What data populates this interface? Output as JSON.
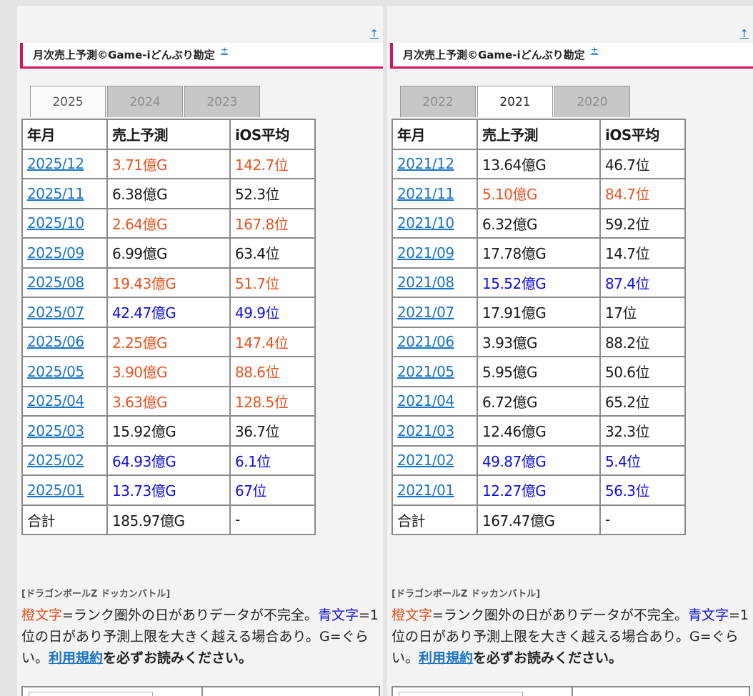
{
  "colors": {
    "orange": "#e8521f",
    "blue": "#1010e0",
    "link": "#1a73c7",
    "accent": "#d0145d"
  },
  "up_arrow": "↑",
  "heading_title": "月次売上予測©Game-iどんぶり勘定",
  "heading_link": "±",
  "headers": [
    "年月",
    "売上予測",
    "iOS平均"
  ],
  "source": "[ドラゴンボールZ ドッカンバトル]",
  "legend": {
    "orange_label": "橙文字",
    "text1": "=ランク圏外の日がありデータが不完全。",
    "blue_label": "青文字",
    "text2": "=1位の日があり予測上限を大きく越える場合あり。G=ぐらい。",
    "terms_link": "利用規約",
    "text3": "を必ずお読みください。"
  },
  "left": {
    "tabs": [
      {
        "label": "2025",
        "active": true
      },
      {
        "label": "2024",
        "active": false
      },
      {
        "label": "2023",
        "active": false
      }
    ],
    "rows": [
      {
        "ym": "2025/12",
        "sales": "3.71億G",
        "ios": "142.7位",
        "color": "orange"
      },
      {
        "ym": "2025/11",
        "sales": "6.38億G",
        "ios": "52.3位",
        "color": ""
      },
      {
        "ym": "2025/10",
        "sales": "2.64億G",
        "ios": "167.8位",
        "color": "orange"
      },
      {
        "ym": "2025/09",
        "sales": "6.99億G",
        "ios": "63.4位",
        "color": ""
      },
      {
        "ym": "2025/08",
        "sales": "19.43億G",
        "ios": "51.7位",
        "color": "orange"
      },
      {
        "ym": "2025/07",
        "sales": "42.47億G",
        "ios": "49.9位",
        "color": "blue"
      },
      {
        "ym": "2025/06",
        "sales": "2.25億G",
        "ios": "147.4位",
        "color": "orange"
      },
      {
        "ym": "2025/05",
        "sales": "3.90億G",
        "ios": "88.6位",
        "color": "orange"
      },
      {
        "ym": "2025/04",
        "sales": "3.63億G",
        "ios": "128.5位",
        "color": "orange"
      },
      {
        "ym": "2025/03",
        "sales": "15.92億G",
        "ios": "36.7位",
        "color": ""
      },
      {
        "ym": "2025/02",
        "sales": "64.93億G",
        "ios": "6.1位",
        "color": "blue"
      },
      {
        "ym": "2025/01",
        "sales": "13.73億G",
        "ios": "67位",
        "color": "blue"
      }
    ],
    "total": {
      "label": "合計",
      "sales": "185.97億G",
      "ios": "-"
    }
  },
  "right": {
    "tabs": [
      {
        "label": "2022",
        "active": false
      },
      {
        "label": "2021",
        "active": true
      },
      {
        "label": "2020",
        "active": false
      }
    ],
    "rows": [
      {
        "ym": "2021/12",
        "sales": "13.64億G",
        "ios": "46.7位",
        "color": ""
      },
      {
        "ym": "2021/11",
        "sales": "5.10億G",
        "ios": "84.7位",
        "color": "orange"
      },
      {
        "ym": "2021/10",
        "sales": "6.32億G",
        "ios": "59.2位",
        "color": ""
      },
      {
        "ym": "2021/09",
        "sales": "17.78億G",
        "ios": "14.7位",
        "color": ""
      },
      {
        "ym": "2021/08",
        "sales": "15.52億G",
        "ios": "87.4位",
        "color": "blue"
      },
      {
        "ym": "2021/07",
        "sales": "17.91億G",
        "ios": "17位",
        "color": ""
      },
      {
        "ym": "2021/06",
        "sales": "3.93億G",
        "ios": "88.2位",
        "color": ""
      },
      {
        "ym": "2021/05",
        "sales": "5.95億G",
        "ios": "50.6位",
        "color": ""
      },
      {
        "ym": "2021/04",
        "sales": "6.72億G",
        "ios": "65.2位",
        "color": ""
      },
      {
        "ym": "2021/03",
        "sales": "12.46億G",
        "ios": "32.3位",
        "color": ""
      },
      {
        "ym": "2021/02",
        "sales": "49.87億G",
        "ios": "5.4位",
        "color": "blue"
      },
      {
        "ym": "2021/01",
        "sales": "12.27億G",
        "ios": "56.3位",
        "color": "blue"
      }
    ],
    "total": {
      "label": "合計",
      "sales": "167.47億G",
      "ios": "-"
    }
  }
}
